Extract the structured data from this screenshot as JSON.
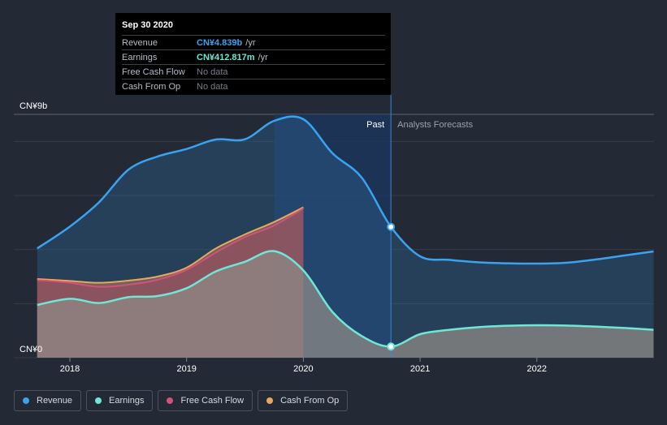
{
  "tooltip": {
    "date": "Sep 30 2020",
    "rows": [
      {
        "label": "Revenue",
        "value": "CN¥4.839b",
        "unit": "/yr",
        "color": "#3aa3f0"
      },
      {
        "label": "Earnings",
        "value": "CN¥412.817m",
        "unit": "/yr",
        "color": "#6fe6d6"
      },
      {
        "label": "Free Cash Flow",
        "value": "No data",
        "unit": "",
        "color": ""
      },
      {
        "label": "Cash From Op",
        "value": "No data",
        "unit": "",
        "color": ""
      }
    ]
  },
  "legend": [
    {
      "label": "Revenue",
      "color": "#3aa3f0"
    },
    {
      "label": "Earnings",
      "color": "#6fe6d6"
    },
    {
      "label": "Free Cash Flow",
      "color": "#d5507a"
    },
    {
      "label": "Cash From Op",
      "color": "#e8a85c"
    }
  ],
  "chart_data": {
    "type": "area",
    "ylim": [
      0,
      9
    ],
    "y_unit": "CN¥ billions",
    "y_tick_labels": [
      {
        "value": 9,
        "label": "CN¥9b"
      },
      {
        "value": 0,
        "label": "CN¥0"
      }
    ],
    "gridlines": [
      0,
      2,
      4,
      6,
      8,
      9
    ],
    "xlim": [
      2017.72,
      2023.0
    ],
    "x_ticks": [
      2018,
      2019,
      2020,
      2021,
      2022
    ],
    "x_tick_labels": [
      "2018",
      "2019",
      "2020",
      "2021",
      "2022"
    ],
    "past_label": "Past",
    "forecast_label": "Analysts Forecasts",
    "divider_x": 2020.75,
    "highlight_start": 2019.75,
    "series": [
      {
        "name": "Revenue",
        "color": "#3aa3f0",
        "points": [
          [
            2017.72,
            4.04
          ],
          [
            2018.0,
            4.85
          ],
          [
            2018.25,
            5.75
          ],
          [
            2018.5,
            6.95
          ],
          [
            2018.75,
            7.44
          ],
          [
            2019.0,
            7.72
          ],
          [
            2019.25,
            8.07
          ],
          [
            2019.5,
            8.08
          ],
          [
            2019.75,
            8.76
          ],
          [
            2020.0,
            8.82
          ],
          [
            2020.25,
            7.56
          ],
          [
            2020.5,
            6.66
          ],
          [
            2020.75,
            4.84
          ],
          [
            2021.0,
            3.75
          ],
          [
            2021.25,
            3.62
          ],
          [
            2021.5,
            3.53
          ],
          [
            2021.75,
            3.49
          ],
          [
            2022.0,
            3.48
          ],
          [
            2022.25,
            3.51
          ],
          [
            2022.5,
            3.63
          ],
          [
            2022.75,
            3.78
          ],
          [
            2023.0,
            3.93
          ]
        ]
      },
      {
        "name": "Earnings",
        "color": "#6fe6d6",
        "points": [
          [
            2017.72,
            1.95
          ],
          [
            2018.0,
            2.18
          ],
          [
            2018.25,
            2.02
          ],
          [
            2018.5,
            2.24
          ],
          [
            2018.75,
            2.28
          ],
          [
            2019.0,
            2.57
          ],
          [
            2019.25,
            3.19
          ],
          [
            2019.5,
            3.55
          ],
          [
            2019.75,
            3.94
          ],
          [
            2020.0,
            3.23
          ],
          [
            2020.25,
            1.69
          ],
          [
            2020.5,
            0.8
          ],
          [
            2020.75,
            0.41
          ],
          [
            2021.0,
            0.87
          ],
          [
            2021.25,
            1.03
          ],
          [
            2021.5,
            1.13
          ],
          [
            2021.75,
            1.18
          ],
          [
            2022.0,
            1.2
          ],
          [
            2022.25,
            1.19
          ],
          [
            2022.5,
            1.15
          ],
          [
            2022.75,
            1.1
          ],
          [
            2023.0,
            1.03
          ]
        ]
      },
      {
        "name": "Free Cash Flow",
        "color": "#d5507a",
        "points": [
          [
            2017.72,
            2.87
          ],
          [
            2018.0,
            2.77
          ],
          [
            2018.25,
            2.62
          ],
          [
            2018.5,
            2.7
          ],
          [
            2018.75,
            2.88
          ],
          [
            2019.0,
            3.25
          ],
          [
            2019.25,
            3.89
          ],
          [
            2019.5,
            4.46
          ],
          [
            2019.75,
            4.89
          ],
          [
            2020.0,
            5.52
          ]
        ]
      },
      {
        "name": "Cash From Op",
        "color": "#e8a85c",
        "points": [
          [
            2017.72,
            2.91
          ],
          [
            2018.0,
            2.84
          ],
          [
            2018.25,
            2.77
          ],
          [
            2018.5,
            2.85
          ],
          [
            2018.75,
            3.0
          ],
          [
            2019.0,
            3.33
          ],
          [
            2019.25,
            4.04
          ],
          [
            2019.5,
            4.56
          ],
          [
            2019.75,
            5.02
          ],
          [
            2020.0,
            5.56
          ]
        ]
      }
    ],
    "highlight_point": {
      "x": 2020.75,
      "revenue": 4.839,
      "earnings": 0.413
    }
  }
}
